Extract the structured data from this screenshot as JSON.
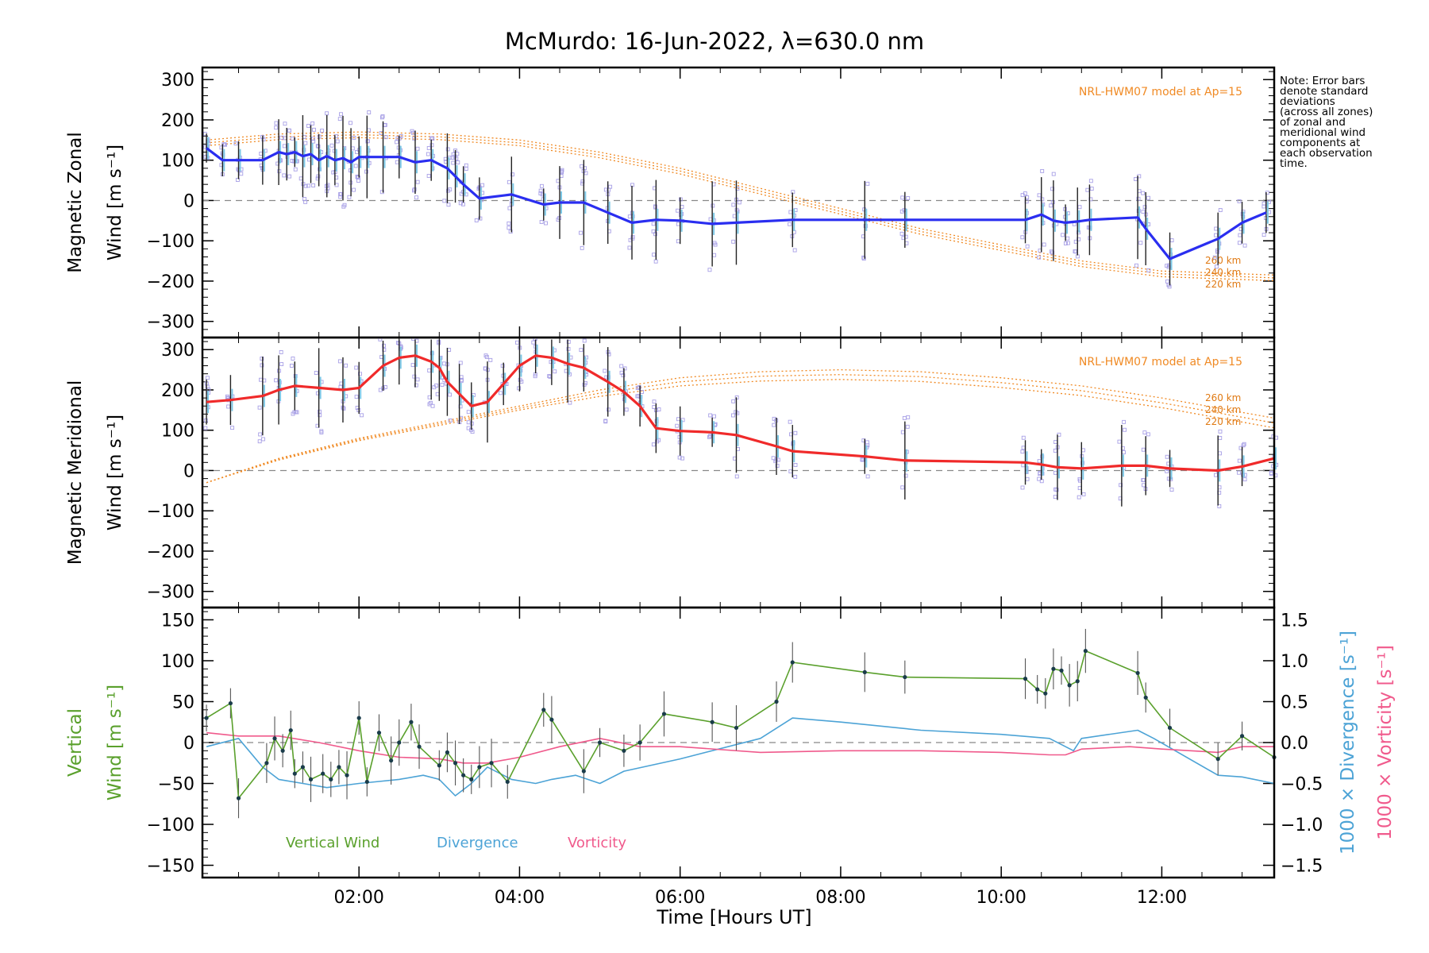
{
  "chart_data": {
    "type": "line",
    "title": "McMurdo: 16-Jun-2022, λ=630.0 nm",
    "xlabel": "Time [Hours UT]",
    "xlim": [
      0.05,
      13.4
    ],
    "x_ticks": [
      2,
      4,
      6,
      8,
      10,
      12
    ],
    "x_tick_labels": [
      "02:00",
      "04:00",
      "06:00",
      "08:00",
      "10:00",
      "12:00"
    ],
    "note": "Note: Error bars\ndenote standard\ndeviations\n(across all zones)\nof zonal and\nmeridional wind\ncomponents at\neach observation\ntime.",
    "panels": [
      {
        "id": "zonal",
        "ylabel_line1": "Magnetic Zonal",
        "ylabel_line2": "Wind [m s⁻¹]",
        "ylim": [
          -340,
          330
        ],
        "y_ticks": [
          -300,
          -200,
          -100,
          0,
          100,
          200,
          300
        ],
        "y_tick_labels": [
          "−300",
          "−200",
          "−100",
          "0",
          "100",
          "200",
          "300"
        ],
        "model_label": "NRL-HWM07 model at Ap=15",
        "model_altitudes": [
          "260 km",
          "240 km",
          "220 km"
        ],
        "grid": false,
        "series": {
          "color": "#2a2ef0",
          "x": [
            0.1,
            0.3,
            0.5,
            0.8,
            1.0,
            1.1,
            1.2,
            1.3,
            1.4,
            1.5,
            1.6,
            1.7,
            1.8,
            1.9,
            2.0,
            2.1,
            2.3,
            2.5,
            2.7,
            2.9,
            3.1,
            3.2,
            3.3,
            3.5,
            3.9,
            4.3,
            4.5,
            4.8,
            5.1,
            5.4,
            5.7,
            6.0,
            6.4,
            6.7,
            7.4,
            8.3,
            8.8,
            10.3,
            10.5,
            10.65,
            10.8,
            10.95,
            11.1,
            11.7,
            11.8,
            12.1,
            12.7,
            13.0,
            13.3
          ],
          "values": [
            130,
            100,
            100,
            100,
            120,
            115,
            120,
            110,
            115,
            100,
            110,
            100,
            105,
            95,
            108,
            108,
            108,
            108,
            95,
            100,
            80,
            60,
            40,
            5,
            15,
            -10,
            -5,
            -5,
            -30,
            -55,
            -48,
            -50,
            -58,
            -55,
            -48,
            -48,
            -48,
            -48,
            -35,
            -50,
            -55,
            -52,
            -48,
            -42,
            -70,
            -145,
            -95,
            -55,
            -30
          ]
        },
        "model_curves": [
          {
            "name": "260 km",
            "x": [
              0.1,
              1.0,
              2.0,
              3.0,
              4.0,
              5.0,
              6.0,
              7.0,
              8.0,
              9.0,
              10.0,
              11.0,
              12.0,
              13.4
            ],
            "values": [
              150,
              165,
              170,
              165,
              150,
              120,
              80,
              30,
              -20,
              -70,
              -110,
              -150,
              -175,
              -185
            ]
          },
          {
            "name": "240 km",
            "x": [
              0.1,
              1.0,
              2.0,
              3.0,
              4.0,
              5.0,
              6.0,
              7.0,
              8.0,
              9.0,
              10.0,
              11.0,
              12.0,
              13.4
            ],
            "values": [
              143,
              158,
              163,
              158,
              143,
              113,
              73,
              23,
              -27,
              -77,
              -117,
              -157,
              -182,
              -192
            ]
          },
          {
            "name": "220 km",
            "x": [
              0.1,
              1.0,
              2.0,
              3.0,
              4.0,
              5.0,
              6.0,
              7.0,
              8.0,
              9.0,
              10.0,
              11.0,
              12.0,
              13.4
            ],
            "values": [
              136,
              151,
              156,
              151,
              136,
              106,
              66,
              16,
              -34,
              -84,
              -124,
              -164,
              -189,
              -199
            ]
          }
        ]
      },
      {
        "id": "meridional",
        "ylabel_line1": "Magnetic Meridional",
        "ylabel_line2": "Wind [m s⁻¹]",
        "ylim": [
          -340,
          330
        ],
        "y_ticks": [
          -300,
          -200,
          -100,
          0,
          100,
          200,
          300
        ],
        "y_tick_labels": [
          "−300",
          "−200",
          "−100",
          "0",
          "100",
          "200",
          "300"
        ],
        "model_label": "NRL-HWM07 model at Ap=15",
        "model_altitudes": [
          "260 km",
          "240 km",
          "220 km"
        ],
        "grid": false,
        "series": {
          "color": "#f02a2a",
          "x": [
            0.1,
            0.4,
            0.8,
            1.0,
            1.2,
            1.5,
            1.8,
            2.0,
            2.3,
            2.5,
            2.7,
            2.9,
            3.0,
            3.1,
            3.25,
            3.4,
            3.6,
            3.8,
            4.0,
            4.2,
            4.4,
            4.6,
            4.8,
            5.1,
            5.3,
            5.5,
            5.7,
            6.0,
            6.4,
            6.7,
            7.2,
            7.4,
            8.3,
            8.8,
            10.3,
            10.5,
            10.7,
            11.0,
            11.5,
            11.8,
            12.1,
            12.7,
            13.0,
            13.4
          ],
          "values": [
            170,
            175,
            185,
            200,
            210,
            205,
            200,
            205,
            260,
            280,
            285,
            270,
            255,
            220,
            190,
            160,
            170,
            215,
            260,
            285,
            280,
            265,
            255,
            220,
            195,
            160,
            105,
            98,
            95,
            88,
            60,
            48,
            35,
            25,
            20,
            15,
            8,
            5,
            12,
            12,
            5,
            0,
            10,
            30
          ]
        },
        "model_curves": [
          {
            "name": "260 km",
            "x": [
              0.1,
              1.0,
              2.0,
              3.0,
              4.0,
              5.0,
              6.0,
              7.0,
              8.0,
              9.0,
              10.0,
              11.0,
              12.0,
              13.4
            ],
            "values": [
              -30,
              30,
              80,
              120,
              160,
              200,
              230,
              245,
              250,
              245,
              230,
              210,
              180,
              130
            ]
          },
          {
            "name": "240 km",
            "x": [
              0.1,
              1.0,
              2.0,
              3.0,
              4.0,
              5.0,
              6.0,
              7.0,
              8.0,
              9.0,
              10.0,
              11.0,
              12.0,
              13.4
            ],
            "values": [
              -30,
              28,
              77,
              116,
              155,
              192,
              220,
              234,
              238,
              233,
              218,
              198,
              168,
              118
            ]
          },
          {
            "name": "220 km",
            "x": [
              0.1,
              1.0,
              2.0,
              3.0,
              4.0,
              5.0,
              6.0,
              7.0,
              8.0,
              9.0,
              10.0,
              11.0,
              12.0,
              13.4
            ],
            "values": [
              -30,
              26,
              74,
              112,
              150,
              184,
              210,
              222,
              226,
              221,
              206,
              186,
              156,
              106
            ]
          }
        ]
      },
      {
        "id": "vertical",
        "ylabel_line1": "Vertical",
        "ylabel_line2": "Wind [m s⁻¹]",
        "ylim": [
          -165,
          165
        ],
        "y_ticks": [
          -150,
          -100,
          -50,
          0,
          50,
          100,
          150
        ],
        "y_tick_labels": [
          "−150",
          "−100",
          "−50",
          "0",
          "50",
          "100",
          "150"
        ],
        "right_axis_labels": [
          "1000 × Divergence [s⁻¹]",
          "1000 × Vorticity [s⁻¹]"
        ],
        "right_ylim": [
          -1.65,
          1.65
        ],
        "right_ticks": [
          -1.5,
          -1.0,
          -0.5,
          0.0,
          0.5,
          1.0,
          1.5
        ],
        "right_tick_labels": [
          "−1.5",
          "−1.0",
          "−0.5",
          "0.0",
          "0.5",
          "1.0",
          "1.5"
        ],
        "legend": [
          "Vertical Wind",
          "Divergence",
          "Vorticity"
        ],
        "legend_placement": "bottom-left",
        "grid": false,
        "series": [
          {
            "name": "Vertical Wind",
            "color": "#5aa02c",
            "x": [
              0.1,
              0.4,
              0.5,
              0.85,
              0.95,
              1.05,
              1.15,
              1.2,
              1.3,
              1.4,
              1.55,
              1.65,
              1.75,
              1.85,
              2.0,
              2.1,
              2.25,
              2.4,
              2.5,
              2.65,
              2.75,
              3.0,
              3.1,
              3.2,
              3.3,
              3.4,
              3.5,
              3.65,
              3.85,
              4.3,
              4.4,
              4.8,
              5.0,
              5.3,
              5.5,
              5.8,
              6.4,
              6.7,
              7.2,
              7.4,
              8.3,
              8.8,
              10.3,
              10.45,
              10.55,
              10.65,
              10.75,
              10.85,
              10.95,
              11.05,
              11.7,
              11.8,
              12.1,
              12.7,
              13.0,
              13.4
            ],
            "values": [
              30,
              48,
              -68,
              -25,
              5,
              -10,
              15,
              -38,
              -30,
              -45,
              -38,
              -45,
              -30,
              -40,
              30,
              -48,
              12,
              -22,
              0,
              25,
              -5,
              -28,
              -12,
              -25,
              -40,
              -45,
              -30,
              -25,
              -48,
              40,
              28,
              -35,
              0,
              -10,
              0,
              35,
              25,
              18,
              50,
              98,
              86,
              80,
              78,
              65,
              60,
              90,
              88,
              70,
              75,
              112,
              85,
              55,
              18,
              -20,
              8,
              -18
            ]
          },
          {
            "name": "Divergence",
            "color": "#4ca3d6",
            "axis": "right",
            "x": [
              0.1,
              0.5,
              0.8,
              1.0,
              1.3,
              1.6,
              2.0,
              2.2,
              2.5,
              2.8,
              3.0,
              3.2,
              3.4,
              3.6,
              3.9,
              4.2,
              4.4,
              4.7,
              5.0,
              5.3,
              6.0,
              7.0,
              7.4,
              8.0,
              9.0,
              10.0,
              10.6,
              10.9,
              11.0,
              11.7,
              11.9,
              12.7,
              13.0,
              13.4
            ],
            "values": [
              -0.05,
              0.05,
              -0.3,
              -0.45,
              -0.5,
              -0.55,
              -0.5,
              -0.48,
              -0.45,
              -0.4,
              -0.45,
              -0.65,
              -0.5,
              -0.3,
              -0.45,
              -0.5,
              -0.45,
              -0.4,
              -0.5,
              -0.35,
              -0.2,
              0.05,
              0.3,
              0.25,
              0.15,
              0.1,
              0.05,
              -0.1,
              0.05,
              0.15,
              0.05,
              -0.4,
              -0.42,
              -0.5
            ]
          },
          {
            "name": "Vorticity",
            "color": "#f05a8c",
            "axis": "right",
            "x": [
              0.1,
              0.5,
              1.0,
              1.5,
              2.0,
              2.5,
              3.0,
              3.3,
              3.6,
              4.0,
              4.5,
              5.0,
              5.5,
              6.0,
              7.0,
              8.0,
              9.0,
              10.0,
              10.6,
              10.8,
              11.0,
              11.6,
              12.0,
              12.7,
              13.0,
              13.4
            ],
            "values": [
              0.12,
              0.08,
              0.08,
              0.0,
              -0.1,
              -0.18,
              -0.2,
              -0.25,
              -0.25,
              -0.18,
              -0.05,
              0.05,
              -0.05,
              -0.05,
              -0.12,
              -0.1,
              -0.1,
              -0.12,
              -0.15,
              -0.15,
              -0.08,
              -0.05,
              -0.08,
              -0.12,
              -0.05,
              -0.05
            ]
          }
        ]
      }
    ]
  }
}
